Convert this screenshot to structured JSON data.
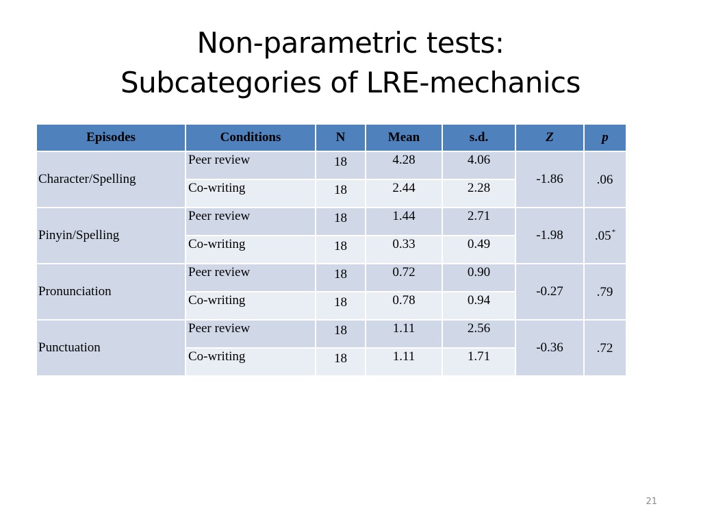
{
  "title": {
    "line1": "Non-parametric tests:",
    "line2": "Subcategories of LRE-mechanics"
  },
  "table": {
    "headers": [
      "Episodes",
      "Conditions",
      "N",
      "Mean",
      "s.d.",
      "Z",
      "p"
    ],
    "groups": [
      {
        "episode": "Character/Spelling",
        "z": "-1.86",
        "p": ".06",
        "p_note": "",
        "rows": [
          {
            "condition": "Peer review",
            "n": "18",
            "mean": "4.28",
            "sd": "4.06"
          },
          {
            "condition": "Co-writing",
            "n": "18",
            "mean": "2.44",
            "sd": "2.28"
          }
        ]
      },
      {
        "episode": "Pinyin/Spelling",
        "z": "-1.98",
        "p": ".05",
        "p_note": "*",
        "rows": [
          {
            "condition": "Peer review",
            "n": "18",
            "mean": "1.44",
            "sd": "2.71"
          },
          {
            "condition": "Co-writing",
            "n": "18",
            "mean": "0.33",
            "sd": "0.49"
          }
        ]
      },
      {
        "episode": "Pronunciation",
        "z": "-0.27",
        "p": ".79",
        "p_note": "",
        "rows": [
          {
            "condition": "Peer review",
            "n": "18",
            "mean": "0.72",
            "sd": "0.90"
          },
          {
            "condition": "Co-writing",
            "n": "18",
            "mean": "0.78",
            "sd": "0.94"
          }
        ]
      },
      {
        "episode": "Punctuation",
        "z": "-0.36",
        "p": ".72",
        "p_note": "",
        "rows": [
          {
            "condition": "Peer review",
            "n": "18",
            "mean": "1.11",
            "sd": "2.56"
          },
          {
            "condition": "Co-writing",
            "n": "18",
            "mean": "1.11",
            "sd": "1.71"
          }
        ]
      }
    ]
  },
  "page_number": "21",
  "colors": {
    "header": "#4f81bd",
    "row_dark": "#d0d8e8",
    "row_light": "#e9edf4"
  }
}
